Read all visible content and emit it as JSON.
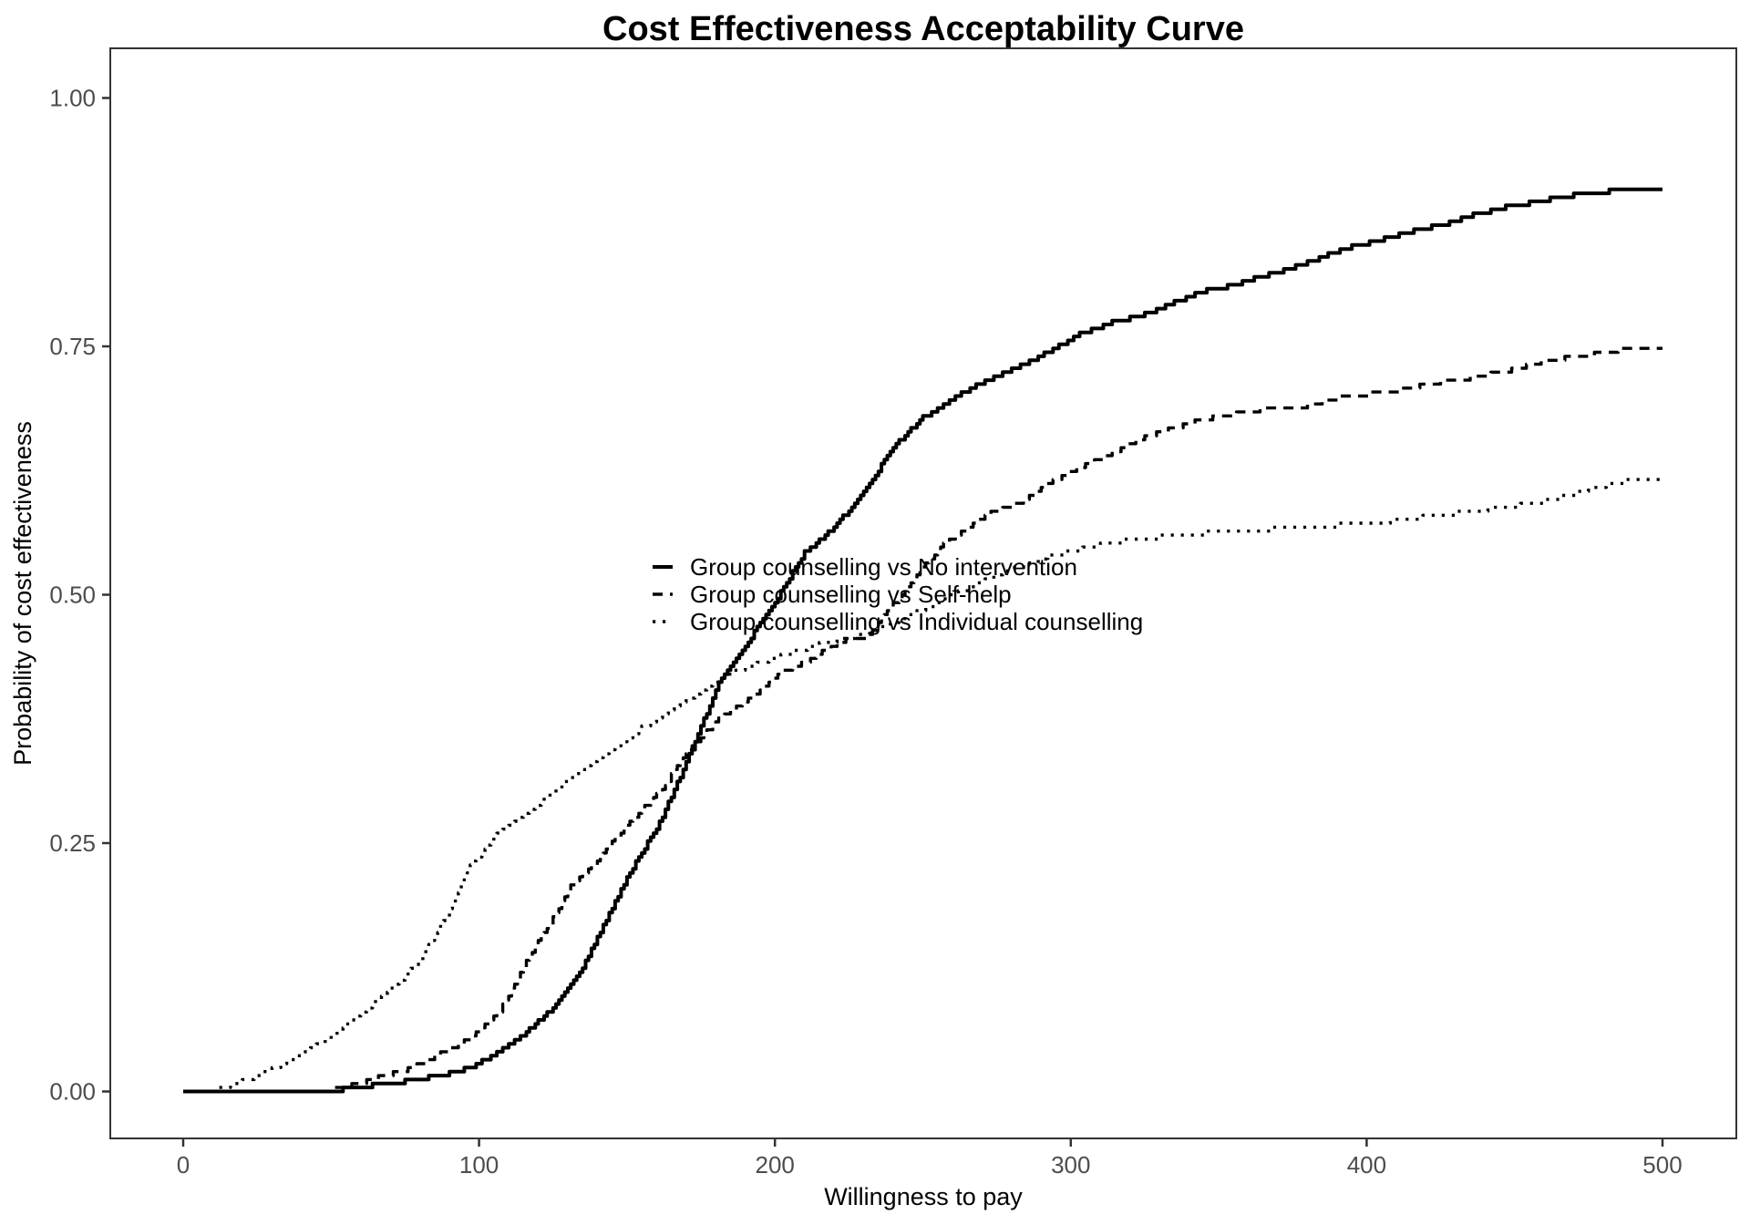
{
  "title": "Cost Effectiveness Acceptability Curve",
  "colors": {
    "line": "#000000",
    "panel_border": "#333333",
    "tick_mark": "#333333",
    "tick_label": "#4d4d4d",
    "background": "#ffffff"
  },
  "chart_data": {
    "type": "line",
    "title": "Cost Effectiveness Acceptability Curve",
    "xlabel": "Willingness to pay",
    "ylabel": "Probability of cost effectiveness",
    "xlim": [
      0,
      500
    ],
    "ylim": [
      0,
      1
    ],
    "grid": false,
    "panel_border": true,
    "x_ticks": [
      "0",
      "100",
      "200",
      "300",
      "400",
      "500"
    ],
    "x_tick_values": [
      0,
      100,
      200,
      300,
      400,
      500
    ],
    "y_ticks": [
      "0.00",
      "0.25",
      "0.50",
      "0.75",
      "1.00"
    ],
    "y_tick_values": [
      0,
      0.25,
      0.5,
      0.75,
      1
    ],
    "legend_position": "inside-center-left",
    "series": [
      {
        "name": "Group counselling vs No intervention",
        "linetype": "solid",
        "points": [
          [
            0,
            0
          ],
          [
            40,
            0
          ],
          [
            50,
            0.001
          ],
          [
            58,
            0.003
          ],
          [
            66,
            0.007
          ],
          [
            77,
            0.011
          ],
          [
            87,
            0.016
          ],
          [
            97,
            0.024
          ],
          [
            107,
            0.04
          ],
          [
            117,
            0.062
          ],
          [
            127,
            0.09
          ],
          [
            135,
            0.125
          ],
          [
            141,
            0.16
          ],
          [
            151,
            0.221
          ],
          [
            161,
            0.27
          ],
          [
            171,
            0.338
          ],
          [
            181,
            0.41
          ],
          [
            189,
            0.445
          ],
          [
            200,
            0.492
          ],
          [
            210,
            0.542
          ],
          [
            220,
            0.568
          ],
          [
            230,
            0.602
          ],
          [
            240,
            0.649
          ],
          [
            250,
            0.678
          ],
          [
            261,
            0.699
          ],
          [
            271,
            0.715
          ],
          [
            281,
            0.728
          ],
          [
            293,
            0.745
          ],
          [
            303,
            0.762
          ],
          [
            314,
            0.774
          ],
          [
            324,
            0.781
          ],
          [
            334,
            0.793
          ],
          [
            344,
            0.805
          ],
          [
            354,
            0.811
          ],
          [
            364,
            0.82
          ],
          [
            375,
            0.829
          ],
          [
            386,
            0.841
          ],
          [
            396,
            0.851
          ],
          [
            406,
            0.858
          ],
          [
            416,
            0.866
          ],
          [
            426,
            0.873
          ],
          [
            437,
            0.883
          ],
          [
            447,
            0.89
          ],
          [
            457,
            0.895
          ],
          [
            467,
            0.901
          ],
          [
            477,
            0.905
          ],
          [
            487,
            0.907
          ],
          [
            500,
            0.907
          ]
        ]
      },
      {
        "name": "Group counselling vs Self-help",
        "linetype": "dashed",
        "points": [
          [
            0,
            0
          ],
          [
            45,
            0
          ],
          [
            52,
            0.003
          ],
          [
            60,
            0.008
          ],
          [
            68,
            0.016
          ],
          [
            77,
            0.023
          ],
          [
            87,
            0.038
          ],
          [
            97,
            0.053
          ],
          [
            107,
            0.081
          ],
          [
            116,
            0.13
          ],
          [
            125,
            0.175
          ],
          [
            131,
            0.206
          ],
          [
            141,
            0.236
          ],
          [
            151,
            0.272
          ],
          [
            161,
            0.301
          ],
          [
            171,
            0.344
          ],
          [
            181,
            0.374
          ],
          [
            192,
            0.396
          ],
          [
            202,
            0.422
          ],
          [
            212,
            0.435
          ],
          [
            222,
            0.453
          ],
          [
            232,
            0.459
          ],
          [
            240,
            0.49
          ],
          [
            248,
            0.52
          ],
          [
            256,
            0.548
          ],
          [
            263,
            0.562
          ],
          [
            273,
            0.582
          ],
          [
            283,
            0.593
          ],
          [
            293,
            0.613
          ],
          [
            303,
            0.628
          ],
          [
            314,
            0.643
          ],
          [
            324,
            0.657
          ],
          [
            334,
            0.667
          ],
          [
            344,
            0.676
          ],
          [
            354,
            0.681
          ],
          [
            364,
            0.686
          ],
          [
            375,
            0.687
          ],
          [
            386,
            0.695
          ],
          [
            396,
            0.701
          ],
          [
            406,
            0.703
          ],
          [
            416,
            0.709
          ],
          [
            426,
            0.715
          ],
          [
            437,
            0.719
          ],
          [
            447,
            0.725
          ],
          [
            457,
            0.733
          ],
          [
            467,
            0.738
          ],
          [
            477,
            0.742
          ],
          [
            487,
            0.747
          ],
          [
            500,
            0.748
          ]
        ]
      },
      {
        "name": "Group counselling vs Individual counselling",
        "linetype": "dotted",
        "points": [
          [
            0,
            0
          ],
          [
            12,
            0.002
          ],
          [
            20,
            0.01
          ],
          [
            30,
            0.022
          ],
          [
            40,
            0.038
          ],
          [
            50,
            0.055
          ],
          [
            60,
            0.078
          ],
          [
            70,
            0.102
          ],
          [
            78,
            0.125
          ],
          [
            85,
            0.155
          ],
          [
            90,
            0.183
          ],
          [
            97,
            0.227
          ],
          [
            105,
            0.256
          ],
          [
            112,
            0.272
          ],
          [
            125,
            0.301
          ],
          [
            140,
            0.335
          ],
          [
            155,
            0.366
          ],
          [
            170,
            0.394
          ],
          [
            185,
            0.421
          ],
          [
            200,
            0.437
          ],
          [
            215,
            0.45
          ],
          [
            230,
            0.46
          ],
          [
            245,
            0.478
          ],
          [
            260,
            0.5
          ],
          [
            275,
            0.52
          ],
          [
            293,
            0.539
          ],
          [
            305,
            0.547
          ],
          [
            315,
            0.553
          ],
          [
            330,
            0.558
          ],
          [
            345,
            0.562
          ],
          [
            360,
            0.565
          ],
          [
            375,
            0.567
          ],
          [
            390,
            0.57
          ],
          [
            405,
            0.573
          ],
          [
            415,
            0.577
          ],
          [
            425,
            0.58
          ],
          [
            437,
            0.585
          ],
          [
            447,
            0.588
          ],
          [
            457,
            0.592
          ],
          [
            467,
            0.599
          ],
          [
            477,
            0.608
          ],
          [
            487,
            0.614
          ],
          [
            500,
            0.617
          ]
        ]
      }
    ]
  }
}
